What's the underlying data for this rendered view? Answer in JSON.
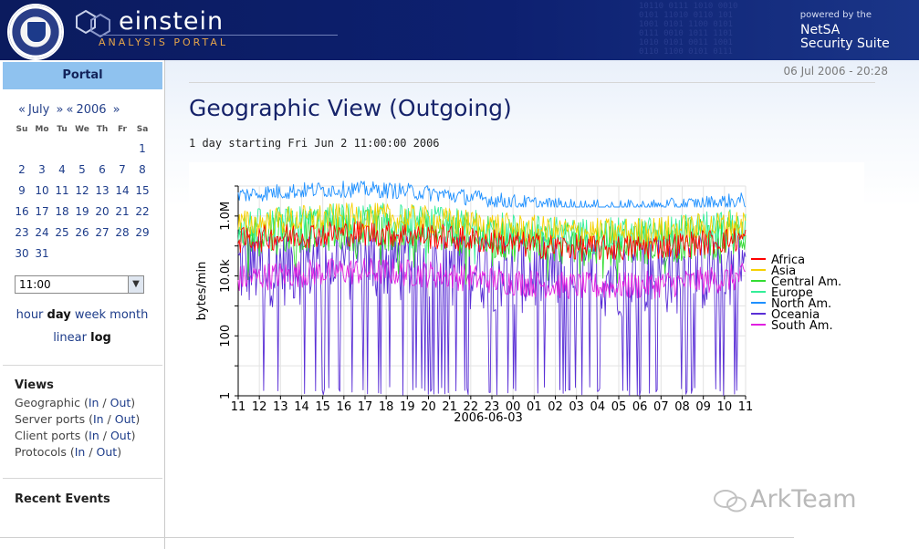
{
  "header": {
    "title": "einstein",
    "subtitle": "ANALYSIS PORTAL",
    "powered_line1": "powered by the",
    "powered_line2": "NetSA",
    "powered_line3": "Security Suite",
    "brand_color": "#0d2070",
    "accent_color": "#e7a64a"
  },
  "sidebar": {
    "portal_tab": "Portal",
    "calendar": {
      "month_prev": "«",
      "month": "July",
      "month_next": "»",
      "year_prev": "«",
      "year": "2006",
      "year_next": "»",
      "weekdays": [
        "Su",
        "Mo",
        "Tu",
        "We",
        "Th",
        "Fr",
        "Sa"
      ],
      "weeks": [
        [
          "",
          "",
          "",
          "",
          "",
          "",
          "1"
        ],
        [
          "2",
          "3",
          "4",
          "5",
          "6",
          "7",
          "8"
        ],
        [
          "9",
          "10",
          "11",
          "12",
          "13",
          "14",
          "15"
        ],
        [
          "16",
          "17",
          "18",
          "19",
          "20",
          "21",
          "22"
        ],
        [
          "23",
          "24",
          "25",
          "26",
          "27",
          "28",
          "29"
        ],
        [
          "30",
          "31",
          "",
          "",
          "",
          "",
          ""
        ]
      ]
    },
    "time_select": "11:00",
    "ranges": [
      "hour",
      "day",
      "week",
      "month"
    ],
    "selected_range": "day",
    "scales": [
      "linear",
      "log"
    ],
    "selected_scale": "log",
    "views_title": "Views",
    "views": [
      {
        "label": "Geographic",
        "in": "In",
        "out": "Out"
      },
      {
        "label": "Server ports",
        "in": "In",
        "out": "Out"
      },
      {
        "label": "Client ports",
        "in": "In",
        "out": "Out"
      },
      {
        "label": "Protocols",
        "in": "In",
        "out": "Out"
      }
    ],
    "recent_events": "Recent Events"
  },
  "main": {
    "timestamp": "06 Jul 2006 - 20:28",
    "title": "Geographic View (Outgoing)",
    "subtitle": "1 day starting Fri Jun 2 11:00:00 2006"
  },
  "watermark": "ArkTeam",
  "chart_data": {
    "type": "line",
    "ylabel": "bytes/min",
    "xlabel": "2006-06-03",
    "yscale": "log",
    "ylim": [
      1,
      10000000
    ],
    "yticks": [
      "1",
      "100",
      "10.0k",
      "1.0M"
    ],
    "xticks": [
      "11",
      "12",
      "13",
      "14",
      "15",
      "16",
      "17",
      "18",
      "19",
      "20",
      "21",
      "22",
      "23",
      "00",
      "01",
      "02",
      "03",
      "04",
      "05",
      "06",
      "07",
      "08",
      "09",
      "10",
      "11"
    ],
    "grid": true,
    "legend_position": "right",
    "series": [
      {
        "name": "Africa",
        "color": "#ff0000",
        "typical": 150000,
        "low": 20000,
        "high": 800000
      },
      {
        "name": "Asia",
        "color": "#f5d000",
        "typical": 500000,
        "low": 50000,
        "high": 3000000
      },
      {
        "name": "Central Am.",
        "color": "#33dd33",
        "typical": 200000,
        "low": 5000,
        "high": 2000000
      },
      {
        "name": "Europe",
        "color": "#33ee99",
        "typical": 400000,
        "low": 20000,
        "high": 3000000
      },
      {
        "name": "North Am.",
        "color": "#1e90ff",
        "typical": 5000000,
        "low": 2000000,
        "high": 20000000
      },
      {
        "name": "Oceania",
        "color": "#5a2fd6",
        "typical": 20000,
        "low": 1,
        "high": 200000
      },
      {
        "name": "South Am.",
        "color": "#e020e0",
        "typical": 8000,
        "low": 800,
        "high": 40000
      }
    ]
  }
}
